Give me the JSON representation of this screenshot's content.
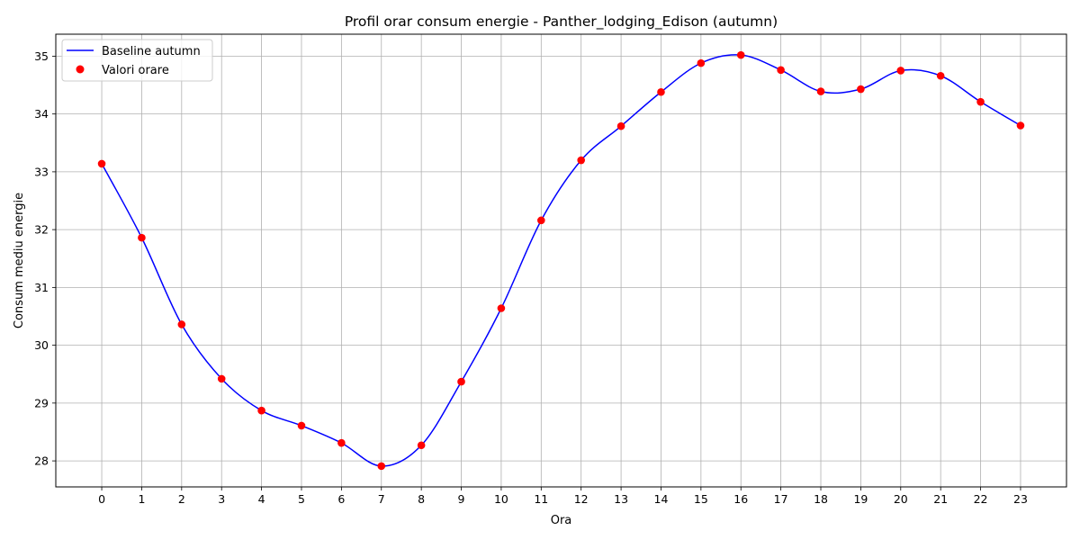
{
  "chart_data": {
    "type": "line",
    "title": "Profil orar consum energie - Panther_lodging_Edison (autumn)",
    "xlabel": "Ora",
    "ylabel": "Consum mediu energie",
    "x": [
      0,
      1,
      2,
      3,
      4,
      5,
      6,
      7,
      8,
      9,
      10,
      11,
      12,
      13,
      14,
      15,
      16,
      17,
      18,
      19,
      20,
      21,
      22,
      23
    ],
    "xticks": [
      "0",
      "1",
      "2",
      "3",
      "4",
      "5",
      "6",
      "7",
      "8",
      "9",
      "10",
      "11",
      "12",
      "13",
      "14",
      "15",
      "16",
      "17",
      "18",
      "19",
      "20",
      "21",
      "22",
      "23"
    ],
    "yticks": [
      28,
      29,
      30,
      31,
      32,
      33,
      34,
      35
    ],
    "xlim": [
      -1.15,
      24.15
    ],
    "ylim": [
      27.55,
      35.38
    ],
    "grid": true,
    "legend_position": "top-left",
    "series": [
      {
        "name": "Baseline autumn",
        "kind": "smooth-line",
        "color": "#0000ff",
        "values": [
          33.14,
          31.86,
          30.36,
          29.42,
          28.87,
          28.61,
          28.31,
          27.91,
          28.27,
          29.37,
          30.64,
          32.16,
          33.2,
          33.79,
          34.38,
          34.88,
          35.02,
          34.76,
          34.39,
          34.43,
          34.75,
          34.66,
          34.21,
          33.8
        ]
      },
      {
        "name": "Valori orare",
        "kind": "scatter",
        "color": "#ff0000",
        "values": [
          33.14,
          31.86,
          30.36,
          29.42,
          28.87,
          28.61,
          28.31,
          27.91,
          28.27,
          29.37,
          30.64,
          32.16,
          33.2,
          33.79,
          34.38,
          34.88,
          35.02,
          34.76,
          34.39,
          34.43,
          34.75,
          34.66,
          34.21,
          33.8
        ]
      }
    ]
  }
}
